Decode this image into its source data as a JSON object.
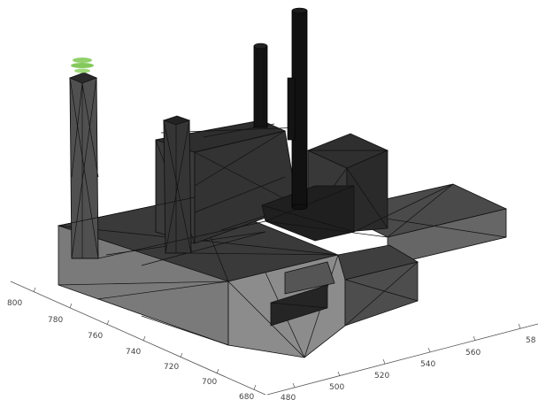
{
  "axes": {
    "left_axis": {
      "ticks": [
        "800",
        "780",
        "760",
        "740",
        "720",
        "700",
        "680"
      ]
    },
    "right_axis": {
      "ticks": [
        "480",
        "500",
        "520",
        "540",
        "560",
        "58"
      ]
    }
  },
  "colors": {
    "background": "#ffffff",
    "solid_dark": "#2c2c2c",
    "solid_mid": "#555555",
    "solid_light": "#7a7a7a",
    "solid_lighter": "#8c8c8c",
    "wireframe": "#111111",
    "plume_green": "#7ec850"
  }
}
